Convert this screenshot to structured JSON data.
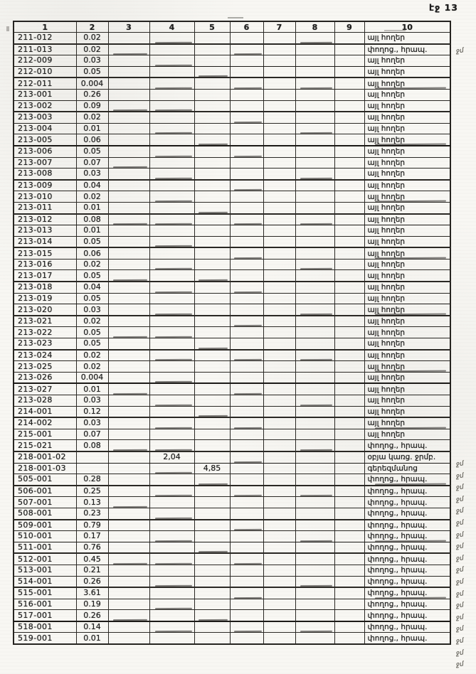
{
  "page": {
    "number_label": "էջ 13"
  },
  "colors": {
    "paper": "#f8f7f3",
    "ink": "#1e1e1e",
    "border": "#2a2824",
    "note_ink": "#56544c"
  },
  "table": {
    "headers": [
      "1",
      "2",
      "3",
      "4",
      "5",
      "6",
      "7",
      "8",
      "9",
      "10"
    ],
    "rows": [
      {
        "cells": [
          "211-012",
          "0.02",
          "",
          "",
          "",
          "",
          "",
          "",
          "",
          "այլ հողեր"
        ],
        "note": ""
      },
      {
        "cells": [
          "211-013",
          "0.02",
          "",
          "",
          "",
          "",
          "",
          "",
          "",
          "փողոց., հրապ."
        ],
        "note": "ջմ"
      },
      {
        "cells": [
          "212-009",
          "0.03",
          "",
          "",
          "",
          "",
          "",
          "",
          "",
          "այլ հողեր"
        ],
        "note": ""
      },
      {
        "cells": [
          "212-010",
          "0.05",
          "",
          "",
          "",
          "",
          "",
          "",
          "",
          "այլ հողեր"
        ],
        "note": ""
      },
      {
        "cells": [
          "212-011",
          "0.004",
          "",
          "",
          "",
          "",
          "",
          "",
          "",
          "այլ հողեր"
        ],
        "note": ""
      },
      {
        "cells": [
          "213-001",
          "0.26",
          "",
          "",
          "",
          "",
          "",
          "",
          "",
          "այլ հողեր"
        ],
        "note": ""
      },
      {
        "cells": [
          "213-002",
          "0.09",
          "",
          "",
          "",
          "",
          "",
          "",
          "",
          "այլ հողեր"
        ],
        "note": ""
      },
      {
        "cells": [
          "213-003",
          "0.02",
          "",
          "",
          "",
          "",
          "",
          "",
          "",
          "այլ հողեր"
        ],
        "note": ""
      },
      {
        "cells": [
          "213-004",
          "0.01",
          "",
          "",
          "",
          "",
          "",
          "",
          "",
          "այլ հողեր"
        ],
        "note": ""
      },
      {
        "cells": [
          "213-005",
          "0.06",
          "",
          "",
          "",
          "",
          "",
          "",
          "",
          "այլ հողեր"
        ],
        "note": ""
      },
      {
        "cells": [
          "213-006",
          "0.05",
          "",
          "",
          "",
          "",
          "",
          "",
          "",
          "այլ հողեր"
        ],
        "note": ""
      },
      {
        "cells": [
          "213-007",
          "0.07",
          "",
          "",
          "",
          "",
          "",
          "",
          "",
          "այլ հողեր"
        ],
        "note": ""
      },
      {
        "cells": [
          "213-008",
          "0.03",
          "",
          "",
          "",
          "",
          "",
          "",
          "",
          "այլ հողեր"
        ],
        "note": ""
      },
      {
        "cells": [
          "213-009",
          "0.04",
          "",
          "",
          "",
          "",
          "",
          "",
          "",
          "այլ հողեր"
        ],
        "note": ""
      },
      {
        "cells": [
          "213-010",
          "0.02",
          "",
          "",
          "",
          "",
          "",
          "",
          "",
          "այլ հողեր"
        ],
        "note": ""
      },
      {
        "cells": [
          "213-011",
          "0.01",
          "",
          "",
          "",
          "",
          "",
          "",
          "",
          "այլ հողեր"
        ],
        "note": ""
      },
      {
        "cells": [
          "213-012",
          "0.08",
          "",
          "",
          "",
          "",
          "",
          "",
          "",
          "այլ հողեր"
        ],
        "note": ""
      },
      {
        "cells": [
          "213-013",
          "0.01",
          "",
          "",
          "",
          "",
          "",
          "",
          "",
          "այլ հողեր"
        ],
        "note": ""
      },
      {
        "cells": [
          "213-014",
          "0.05",
          "",
          "",
          "",
          "",
          "",
          "",
          "",
          "այլ հողեր"
        ],
        "note": ""
      },
      {
        "cells": [
          "213-015",
          "0.06",
          "",
          "",
          "",
          "",
          "",
          "",
          "",
          "այլ հողեր"
        ],
        "note": ""
      },
      {
        "cells": [
          "213-016",
          "0.02",
          "",
          "",
          "",
          "",
          "",
          "",
          "",
          "այլ հողեր"
        ],
        "note": ""
      },
      {
        "cells": [
          "213-017",
          "0.05",
          "",
          "",
          "",
          "",
          "",
          "",
          "",
          "այլ հողեր"
        ],
        "note": ""
      },
      {
        "cells": [
          "213-018",
          "0.04",
          "",
          "",
          "",
          "",
          "",
          "",
          "",
          "այլ հողեր"
        ],
        "note": ""
      },
      {
        "cells": [
          "213-019",
          "0.05",
          "",
          "",
          "",
          "",
          "",
          "",
          "",
          "այլ հողեր"
        ],
        "note": ""
      },
      {
        "cells": [
          "213-020",
          "0.03",
          "",
          "",
          "",
          "",
          "",
          "",
          "",
          "այլ հողեր"
        ],
        "note": ""
      },
      {
        "cells": [
          "213-021",
          "0.02",
          "",
          "",
          "",
          "",
          "",
          "",
          "",
          "այլ հողեր"
        ],
        "note": ""
      },
      {
        "cells": [
          "213-022",
          "0.05",
          "",
          "",
          "",
          "",
          "",
          "",
          "",
          "այլ հողեր"
        ],
        "note": ""
      },
      {
        "cells": [
          "213-023",
          "0.05",
          "",
          "",
          "",
          "",
          "",
          "",
          "",
          "այլ հողեր"
        ],
        "note": ""
      },
      {
        "cells": [
          "213-024",
          "0.02",
          "",
          "",
          "",
          "",
          "",
          "",
          "",
          "այլ հողեր"
        ],
        "note": ""
      },
      {
        "cells": [
          "213-025",
          "0.02",
          "",
          "",
          "",
          "",
          "",
          "",
          "",
          "այլ հողեր"
        ],
        "note": ""
      },
      {
        "cells": [
          "213-026",
          "0.004",
          "",
          "",
          "",
          "",
          "",
          "",
          "",
          "այլ հողեր"
        ],
        "note": ""
      },
      {
        "cells": [
          "213-027",
          "0.01",
          "",
          "",
          "",
          "",
          "",
          "",
          "",
          "այլ հողեր"
        ],
        "note": ""
      },
      {
        "cells": [
          "213-028",
          "0.03",
          "",
          "",
          "",
          "",
          "",
          "",
          "",
          "այլ հողեր"
        ],
        "note": ""
      },
      {
        "cells": [
          "214-001",
          "0.12",
          "",
          "",
          "",
          "",
          "",
          "",
          "",
          "այլ հողեր"
        ],
        "note": ""
      },
      {
        "cells": [
          "214-002",
          "0.03",
          "",
          "",
          "",
          "",
          "",
          "",
          "",
          "այլ հողեր"
        ],
        "note": ""
      },
      {
        "cells": [
          "215-001",
          "0.07",
          "",
          "",
          "",
          "",
          "",
          "",
          "",
          "այլ հողեր"
        ],
        "note": ""
      },
      {
        "cells": [
          "215-021",
          "0.08",
          "",
          "",
          "",
          "",
          "",
          "",
          "",
          "փողոց., հրապ."
        ],
        "note": "ջմ"
      },
      {
        "cells": [
          "218-001-02",
          "",
          "",
          "2,04",
          "",
          "",
          "",
          "",
          "",
          "օբյա կառց. ջրմբ."
        ],
        "note": "ջմ"
      },
      {
        "cells": [
          "218-001-03",
          "",
          "",
          "",
          "4,85",
          "",
          "",
          "",
          "",
          "գերեզմանոց"
        ],
        "note": "ջմ"
      },
      {
        "cells": [
          "505-001",
          "0.28",
          "",
          "",
          "",
          "",
          "",
          "",
          "",
          "փողոց., հրապ."
        ],
        "note": "ջմ"
      },
      {
        "cells": [
          "506-001",
          "0.25",
          "",
          "",
          "",
          "",
          "",
          "",
          "",
          "փողոց., հրապ."
        ],
        "note": "ջմ"
      },
      {
        "cells": [
          "507-001",
          "0.13",
          "",
          "",
          "",
          "",
          "",
          "",
          "",
          "փողոց., հրապ."
        ],
        "note": "ջմ"
      },
      {
        "cells": [
          "508-001",
          "0.23",
          "",
          "",
          "",
          "",
          "",
          "",
          "",
          "փողոց., հրապ."
        ],
        "note": "ջմ"
      },
      {
        "cells": [
          "509-001",
          "0.79",
          "",
          "",
          "",
          "",
          "",
          "",
          "",
          "փողոց., հրապ."
        ],
        "note": "ջմ"
      },
      {
        "cells": [
          "510-001",
          "0.17",
          "",
          "",
          "",
          "",
          "",
          "",
          "",
          "փողոց., հրապ."
        ],
        "note": "ջմ"
      },
      {
        "cells": [
          "511-001",
          "0.76",
          "",
          "",
          "",
          "",
          "",
          "",
          "",
          "փողոց., հրապ."
        ],
        "note": "ջմ"
      },
      {
        "cells": [
          "512-001",
          "0.45",
          "",
          "",
          "",
          "",
          "",
          "",
          "",
          "փողոց., հրապ."
        ],
        "note": "ջմ"
      },
      {
        "cells": [
          "513-001",
          "0.21",
          "",
          "",
          "",
          "",
          "",
          "",
          "",
          "փողոց., հրապ."
        ],
        "note": "ջմ"
      },
      {
        "cells": [
          "514-001",
          "0.26",
          "",
          "",
          "",
          "",
          "",
          "",
          "",
          "փողոց., հրապ."
        ],
        "note": "ջմ"
      },
      {
        "cells": [
          "515-001",
          "3.61",
          "",
          "",
          "",
          "",
          "",
          "",
          "",
          "փողոց., հրապ."
        ],
        "note": "ջմ"
      },
      {
        "cells": [
          "516-001",
          "0.19",
          "",
          "",
          "",
          "",
          "",
          "",
          "",
          "փողոց., հրապ."
        ],
        "note": "ջմ"
      },
      {
        "cells": [
          "517-001",
          "0.26",
          "",
          "",
          "",
          "",
          "",
          "",
          "",
          "փողոց., հրապ."
        ],
        "note": "ջմ"
      },
      {
        "cells": [
          "518-001",
          "0.14",
          "",
          "",
          "",
          "",
          "",
          "",
          "",
          "փողոց., հրապ."
        ],
        "note": "ջմ"
      },
      {
        "cells": [
          "519-001",
          "0.01",
          "",
          "",
          "",
          "",
          "",
          "",
          "",
          "փողոց., հրապ."
        ],
        "note": "ջմ"
      }
    ]
  }
}
